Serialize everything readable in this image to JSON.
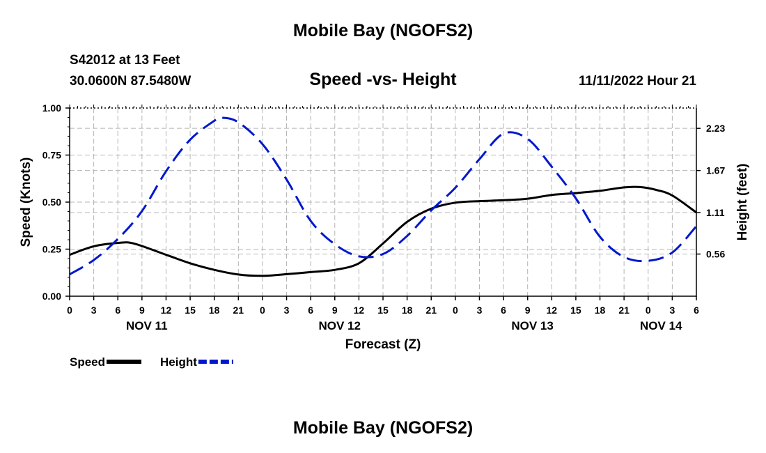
{
  "header": {
    "title": "Mobile Bay (NGOFS2)",
    "station": "S42012 at 13 Feet",
    "coords": "30.0600N  87.5480W",
    "subtitle": "Speed -vs- Height",
    "datetime": "11/11/2022 Hour 21"
  },
  "footer": {
    "title": "Mobile Bay (NGOFS2)"
  },
  "chart_data": {
    "type": "line",
    "title": "Speed -vs- Height",
    "xlabel": "Forecast (Z)",
    "ylabel_left": "Speed (Knots)",
    "ylabel_right": "Height (feet)",
    "x_hours_range": [
      0,
      78
    ],
    "x_ticks": [
      {
        "hour": 0,
        "label": "0"
      },
      {
        "hour": 3,
        "label": "3"
      },
      {
        "hour": 6,
        "label": "6"
      },
      {
        "hour": 9,
        "label": "9"
      },
      {
        "hour": 12,
        "label": "12"
      },
      {
        "hour": 15,
        "label": "15"
      },
      {
        "hour": 18,
        "label": "18"
      },
      {
        "hour": 21,
        "label": "21"
      },
      {
        "hour": 24,
        "label": "0"
      },
      {
        "hour": 27,
        "label": "3"
      },
      {
        "hour": 30,
        "label": "6"
      },
      {
        "hour": 33,
        "label": "9"
      },
      {
        "hour": 36,
        "label": "12"
      },
      {
        "hour": 39,
        "label": "15"
      },
      {
        "hour": 42,
        "label": "18"
      },
      {
        "hour": 45,
        "label": "21"
      },
      {
        "hour": 48,
        "label": "0"
      },
      {
        "hour": 51,
        "label": "3"
      },
      {
        "hour": 54,
        "label": "6"
      },
      {
        "hour": 57,
        "label": "9"
      },
      {
        "hour": 60,
        "label": "12"
      },
      {
        "hour": 63,
        "label": "15"
      },
      {
        "hour": 66,
        "label": "18"
      },
      {
        "hour": 69,
        "label": "21"
      },
      {
        "hour": 72,
        "label": "0"
      },
      {
        "hour": 75,
        "label": "3"
      },
      {
        "hour": 78,
        "label": "6"
      }
    ],
    "date_labels": [
      {
        "hour": 9.6,
        "label": "NOV 11"
      },
      {
        "hour": 33.6,
        "label": "NOV 12"
      },
      {
        "hour": 57.6,
        "label": "NOV 13"
      },
      {
        "hour": 73.6,
        "label": "NOV 14"
      }
    ],
    "y_left": {
      "range": [
        0,
        1
      ],
      "ticks": [
        {
          "value": 0,
          "label": "0.00"
        },
        {
          "value": 0.25,
          "label": "0.25"
        },
        {
          "value": 0.5,
          "label": "0.50"
        },
        {
          "value": 0.75,
          "label": "0.75"
        },
        {
          "value": 1,
          "label": "1.00"
        }
      ]
    },
    "y_right": {
      "range": [
        0,
        2.5
      ],
      "ticks": [
        {
          "value": 0.56,
          "label": "0.56"
        },
        {
          "value": 1.11,
          "label": "1.11"
        },
        {
          "value": 1.67,
          "label": "1.67"
        },
        {
          "value": 2.23,
          "label": "2.23"
        }
      ]
    },
    "series": [
      {
        "name": "Speed",
        "axis": "left",
        "color": "#000000",
        "style": "solid",
        "x": [
          0,
          3,
          6,
          8,
          12,
          15,
          18,
          21,
          24,
          27,
          30,
          33,
          36,
          39,
          42,
          45,
          48,
          51,
          54,
          57,
          60,
          63,
          66,
          69,
          71,
          73,
          75,
          78
        ],
        "y": [
          0.22,
          0.265,
          0.283,
          0.28,
          0.22,
          0.175,
          0.14,
          0.115,
          0.108,
          0.117,
          0.128,
          0.14,
          0.175,
          0.28,
          0.395,
          0.465,
          0.497,
          0.505,
          0.51,
          0.518,
          0.538,
          0.548,
          0.56,
          0.578,
          0.58,
          0.565,
          0.535,
          0.445
        ]
      },
      {
        "name": "Height",
        "axis": "right",
        "color": "#0018cc",
        "style": "dashed",
        "x": [
          0,
          3,
          6,
          9,
          12,
          15,
          18,
          19,
          21,
          24,
          27,
          30,
          33,
          36,
          39,
          42,
          45,
          48,
          51,
          54,
          57,
          60,
          63,
          66,
          69,
          72,
          75,
          78
        ],
        "y": [
          0.29,
          0.48,
          0.76,
          1.13,
          1.66,
          2.08,
          2.33,
          2.37,
          2.31,
          2.02,
          1.55,
          1.0,
          0.69,
          0.53,
          0.56,
          0.8,
          1.14,
          1.44,
          1.82,
          2.16,
          2.09,
          1.72,
          1.3,
          0.79,
          0.52,
          0.47,
          0.58,
          0.93
        ]
      }
    ],
    "legend": [
      {
        "label": "Speed",
        "color": "#000000",
        "style": "solid"
      },
      {
        "label": "Height",
        "color": "#0018cc",
        "style": "dashed"
      }
    ],
    "legend_position": "bottom-left"
  }
}
